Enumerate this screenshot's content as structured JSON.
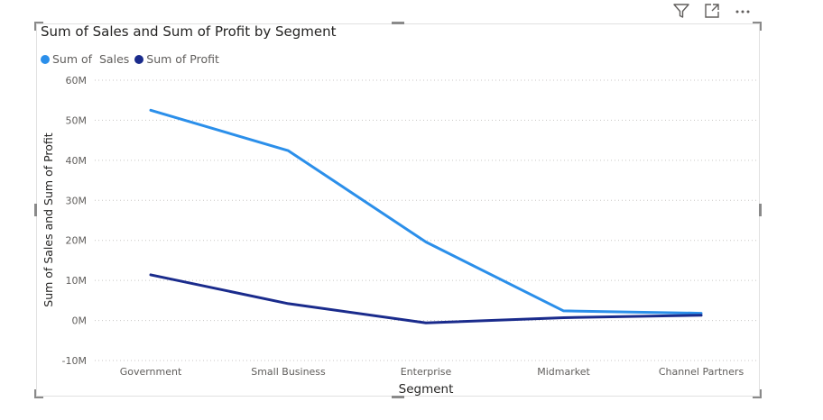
{
  "chart_data": {
    "type": "line",
    "title": "Sum of Sales and Sum of Profit by Segment",
    "xlabel": "Segment",
    "ylabel": "Sum of Sales and Sum of Profit",
    "categories": [
      "Government",
      "Small Business",
      "Enterprise",
      "Midmarket",
      "Channel Partners"
    ],
    "series": [
      {
        "name": "Sum of  Sales",
        "color": "#2b8fea",
        "values": [
          52.5,
          42.4,
          19.6,
          2.4,
          1.8
        ]
      },
      {
        "name": "Sum of Profit",
        "color": "#1a2b8c",
        "values": [
          11.4,
          4.2,
          -0.6,
          0.7,
          1.3
        ]
      }
    ],
    "yticks": [
      "60M",
      "50M",
      "40M",
      "30M",
      "20M",
      "10M",
      "0M",
      "-10M"
    ],
    "ylim": [
      -10,
      60
    ],
    "grid": true,
    "legend": "top-left"
  },
  "toolbar": {
    "icons": [
      "filter-icon",
      "focus-mode-icon",
      "more-options-icon"
    ]
  }
}
